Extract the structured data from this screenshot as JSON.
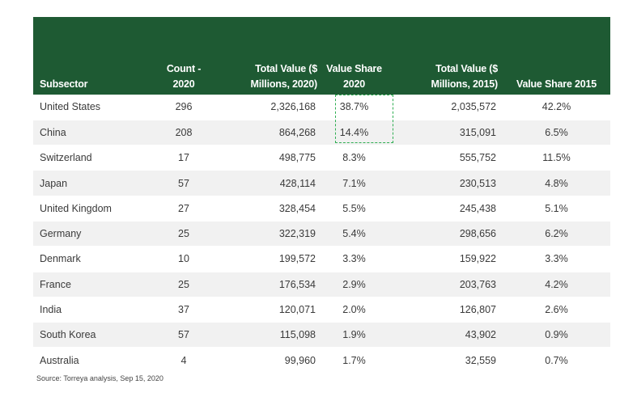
{
  "table": {
    "headers": {
      "subsector": "Subsector",
      "count_line1": "Count -",
      "count_line2": "2020",
      "total2020_line1": "Total Value ($",
      "total2020_line2": "Millions, 2020)",
      "share2020_line1": "Value Share",
      "share2020_line2": "2020",
      "total2015_line1": "Total Value ($",
      "total2015_line2": "Millions, 2015)",
      "share2015": "Value Share 2015"
    },
    "rows": [
      {
        "subsector": "United States",
        "count": "296",
        "total_2020": "2,326,168",
        "share_2020": "38.7%",
        "total_2015": "2,035,572",
        "share_2015": "42.2%"
      },
      {
        "subsector": "China",
        "count": "208",
        "total_2020": "864,268",
        "share_2020": "14.4%",
        "total_2015": "315,091",
        "share_2015": "6.5%"
      },
      {
        "subsector": "Switzerland",
        "count": "17",
        "total_2020": "498,775",
        "share_2020": "8.3%",
        "total_2015": "555,752",
        "share_2015": "11.5%"
      },
      {
        "subsector": "Japan",
        "count": "57",
        "total_2020": "428,114",
        "share_2020": "7.1%",
        "total_2015": "230,513",
        "share_2015": "4.8%"
      },
      {
        "subsector": "United Kingdom",
        "count": "27",
        "total_2020": "328,454",
        "share_2020": "5.5%",
        "total_2015": "245,438",
        "share_2015": "5.1%"
      },
      {
        "subsector": "Germany",
        "count": "25",
        "total_2020": "322,319",
        "share_2020": "5.4%",
        "total_2015": "298,656",
        "share_2015": "6.2%"
      },
      {
        "subsector": "Denmark",
        "count": "10",
        "total_2020": "199,572",
        "share_2020": "3.3%",
        "total_2015": "159,922",
        "share_2015": "3.3%"
      },
      {
        "subsector": "France",
        "count": "25",
        "total_2020": "176,534",
        "share_2020": "2.9%",
        "total_2015": "203,763",
        "share_2015": "4.2%"
      },
      {
        "subsector": "India",
        "count": "37",
        "total_2020": "120,071",
        "share_2020": "2.0%",
        "total_2015": "126,807",
        "share_2015": "2.6%"
      },
      {
        "subsector": "South Korea",
        "count": "57",
        "total_2020": "115,098",
        "share_2020": "1.9%",
        "total_2015": "43,902",
        "share_2015": "0.9%"
      },
      {
        "subsector": "Australia",
        "count": "4",
        "total_2020": "99,960",
        "share_2020": "1.7%",
        "total_2015": "32,559",
        "share_2015": "0.7%"
      }
    ]
  },
  "source": "Source: Torreya analysis, Sep 15, 2020",
  "colors": {
    "header_bg": "#1e5a33",
    "stripe": "#f1f1f1",
    "highlight_border": "#2fae52"
  }
}
